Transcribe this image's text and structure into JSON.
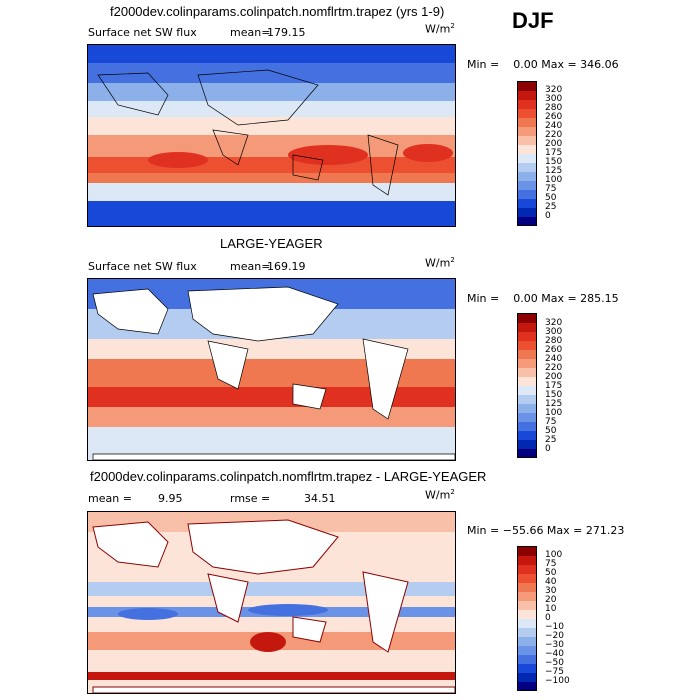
{
  "season": "DJF",
  "panels": [
    {
      "title": "f2000dev.colinparams.colinpatch.nomflrtm.trapez (yrs 1-9)",
      "left_label": "Surface net SW flux",
      "stat_label": "mean=",
      "stat_value": "179.15",
      "units": "W/m",
      "units_sup": "2",
      "minmax": "Min =    0.00 Max = 346.06",
      "cbar_levels": [
        "320",
        "300",
        "280",
        "260",
        "240",
        "220",
        "200",
        "175",
        "150",
        "125",
        "100",
        "75",
        "50",
        "25",
        "0"
      ],
      "colors": [
        "#8b0000",
        "#c4180e",
        "#e03020",
        "#ec5030",
        "#f07850",
        "#f49a78",
        "#f8c0a8",
        "#fde4d8",
        "#dce8f6",
        "#b4ccf0",
        "#8cb0ea",
        "#6a92e6",
        "#4470e0",
        "#1848d8",
        "#0028b0",
        "#000080"
      ]
    },
    {
      "title": "LARGE-YEAGER",
      "left_label": "Surface net SW flux",
      "stat_label": "mean=",
      "stat_value": "169.19",
      "units": "W/m",
      "units_sup": "2",
      "minmax": "Min =    0.00 Max = 285.15",
      "cbar_levels": [
        "320",
        "300",
        "280",
        "260",
        "240",
        "220",
        "200",
        "175",
        "150",
        "125",
        "100",
        "75",
        "50",
        "25",
        "0"
      ],
      "colors": [
        "#8b0000",
        "#c4180e",
        "#e03020",
        "#ec5030",
        "#f07850",
        "#f49a78",
        "#f8c0a8",
        "#fde4d8",
        "#dce8f6",
        "#b4ccf0",
        "#8cb0ea",
        "#6a92e6",
        "#4470e0",
        "#1848d8",
        "#0028b0",
        "#000080"
      ]
    },
    {
      "title": "f2000dev.colinparams.colinpatch.nomflrtm.trapez - LARGE-YEAGER",
      "left_label": "mean =",
      "stat_label": "rmse =",
      "left_value": "9.95",
      "stat_value": "34.51",
      "units": "W/m",
      "units_sup": "2",
      "minmax": "Min = −55.66 Max = 271.23",
      "cbar_levels": [
        "100",
        "75",
        "50",
        "40",
        "30",
        "20",
        "10",
        "0",
        "−10",
        "−20",
        "−30",
        "−40",
        "−50",
        "−75",
        "−100"
      ],
      "colors": [
        "#8b0000",
        "#c4180e",
        "#e03020",
        "#ec5030",
        "#f07850",
        "#f49a78",
        "#f8c0a8",
        "#fde4d8",
        "#dce8f6",
        "#b4ccf0",
        "#8cb0ea",
        "#6a92e6",
        "#4470e0",
        "#1848d8",
        "#0028b0",
        "#000080"
      ]
    }
  ]
}
